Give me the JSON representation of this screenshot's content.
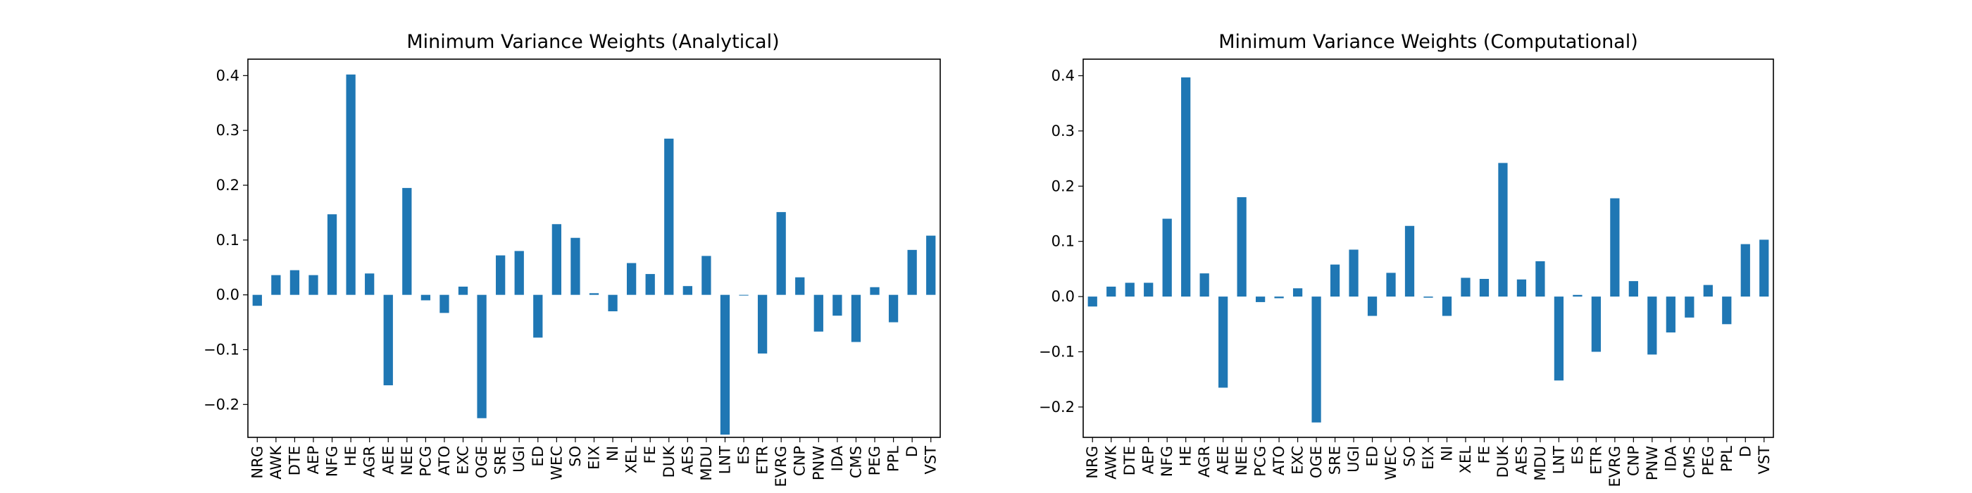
{
  "chart_data": [
    {
      "type": "bar",
      "title": "Minimum Variance Weights (Analytical)",
      "xlabel": "",
      "ylabel": "",
      "ylim": [
        -0.26,
        0.43
      ],
      "yticks": [
        -0.2,
        -0.1,
        0.0,
        0.1,
        0.2,
        0.3,
        0.4
      ],
      "ytick_labels": [
        "−0.2",
        "−0.1",
        "0.0",
        "0.1",
        "0.2",
        "0.3",
        "0.4"
      ],
      "grid": false,
      "color": "#1f77b4",
      "categories": [
        "NRG",
        "AWK",
        "DTE",
        "AEP",
        "NFG",
        "HE",
        "AGR",
        "AEE",
        "NEE",
        "PCG",
        "ATO",
        "EXC",
        "OGE",
        "SRE",
        "UGI",
        "ED",
        "WEC",
        "SO",
        "EIX",
        "NI",
        "XEL",
        "FE",
        "DUK",
        "AES",
        "MDU",
        "LNT",
        "ES",
        "ETR",
        "EVRG",
        "CNP",
        "PNW",
        "IDA",
        "CMS",
        "PEG",
        "PPL",
        "D",
        "VST"
      ],
      "values": [
        -0.02,
        0.036,
        0.045,
        0.036,
        0.147,
        0.402,
        0.039,
        -0.165,
        0.195,
        -0.01,
        -0.033,
        0.015,
        -0.225,
        0.072,
        0.08,
        -0.078,
        0.129,
        0.104,
        0.003,
        -0.03,
        0.058,
        0.038,
        0.285,
        0.016,
        0.071,
        -0.255,
        0.0,
        -0.107,
        0.151,
        0.032,
        -0.067,
        -0.038,
        -0.086,
        0.014,
        -0.05,
        0.082,
        0.108
      ]
    },
    {
      "type": "bar",
      "title": "Minimum Variance Weights (Computational)",
      "xlabel": "",
      "ylabel": "",
      "ylim": [
        -0.255,
        0.43
      ],
      "yticks": [
        -0.2,
        -0.1,
        0.0,
        0.1,
        0.2,
        0.3,
        0.4
      ],
      "ytick_labels": [
        "−0.2",
        "−0.1",
        "0.0",
        "0.1",
        "0.2",
        "0.3",
        "0.4"
      ],
      "grid": false,
      "color": "#1f77b4",
      "categories": [
        "NRG",
        "AWK",
        "DTE",
        "AEP",
        "NFG",
        "HE",
        "AGR",
        "AEE",
        "NEE",
        "PCG",
        "ATO",
        "EXC",
        "OGE",
        "SRE",
        "UGI",
        "ED",
        "WEC",
        "SO",
        "EIX",
        "NI",
        "XEL",
        "FE",
        "DUK",
        "AES",
        "MDU",
        "LNT",
        "ES",
        "ETR",
        "EVRG",
        "CNP",
        "PNW",
        "IDA",
        "CMS",
        "PEG",
        "PPL",
        "D",
        "VST"
      ],
      "values": [
        -0.018,
        0.018,
        0.025,
        0.025,
        0.141,
        0.397,
        0.042,
        -0.165,
        0.18,
        -0.01,
        -0.003,
        0.015,
        -0.228,
        0.058,
        0.085,
        -0.035,
        0.043,
        0.128,
        -0.002,
        -0.035,
        0.034,
        0.032,
        0.242,
        0.031,
        0.064,
        -0.152,
        0.003,
        -0.1,
        0.178,
        0.028,
        -0.105,
        -0.065,
        -0.038,
        0.021,
        -0.05,
        0.095,
        0.103
      ]
    }
  ]
}
